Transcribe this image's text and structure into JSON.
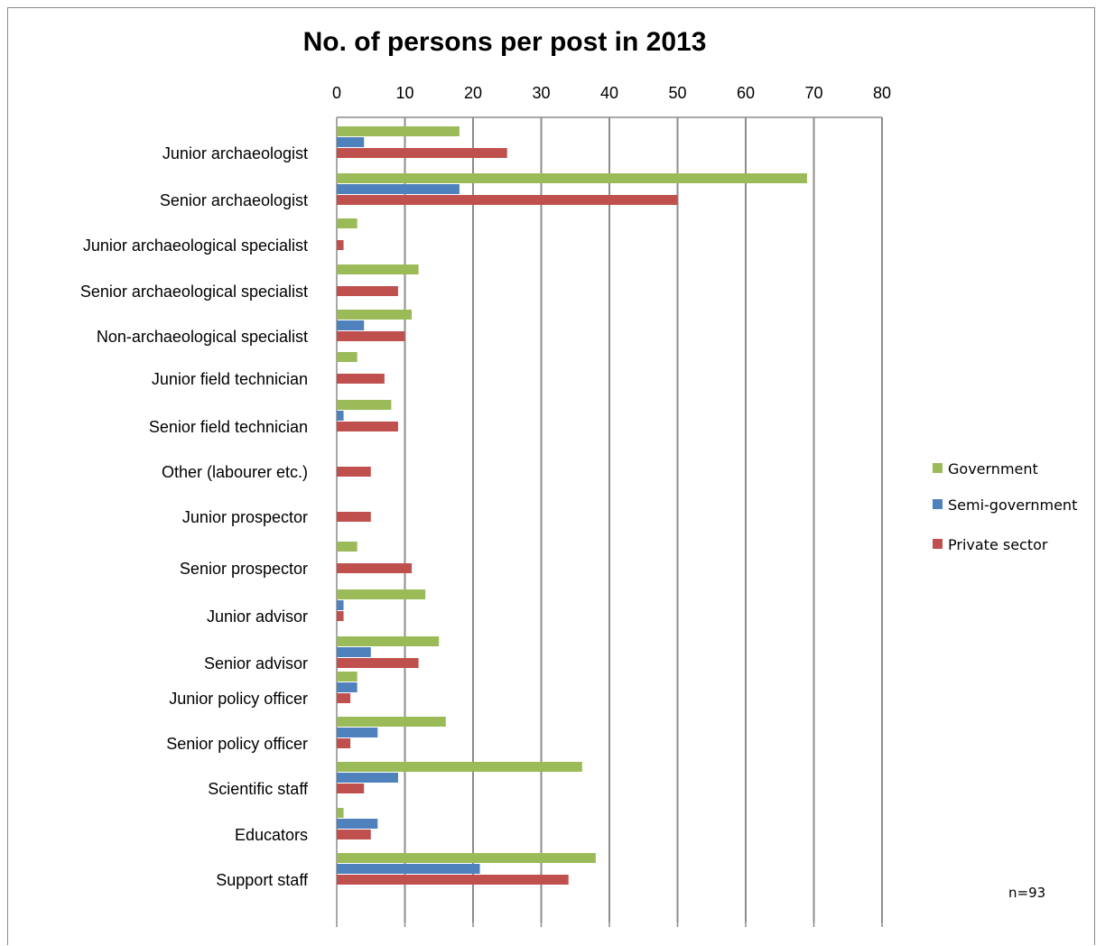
{
  "chart_data": {
    "type": "bar",
    "orientation": "horizontal",
    "title": "No. of persons per post in 2013",
    "xlabel": "",
    "ylabel": "",
    "xlim": [
      0,
      80
    ],
    "x_ticks": [
      "0",
      "10",
      "20",
      "30",
      "40",
      "50",
      "60",
      "70",
      "80"
    ],
    "x_axis_position": "top",
    "grid": "vertical",
    "legend_position": "right",
    "categories": [
      "Junior archaeologist",
      "Senior archaeologist",
      "Junior archaeological specialist",
      "Senior archaeological specialist",
      "Non-archaeological specialist",
      "Junior field technician",
      "Senior field technician",
      "Other (labourer etc.)",
      "Junior prospector",
      "Senior prospector",
      "Junior advisor",
      "Senior advisor",
      "Junior policy officer",
      "Senior policy officer",
      "Scientific staff",
      "Educators",
      "Support staff"
    ],
    "series": [
      {
        "name": "Government",
        "color": "#9bbb59",
        "values": [
          18,
          69,
          3,
          12,
          11,
          3,
          8,
          0,
          0,
          3,
          13,
          15,
          3,
          16,
          36,
          1,
          38
        ]
      },
      {
        "name": "Semi-government",
        "color": "#4f81bd",
        "values": [
          4,
          18,
          0,
          0,
          4,
          0,
          1,
          0,
          0,
          0,
          1,
          5,
          3,
          6,
          9,
          6,
          21
        ]
      },
      {
        "name": "Private sector",
        "color": "#c0504d",
        "values": [
          25,
          50,
          1,
          9,
          10,
          7,
          9,
          5,
          5,
          11,
          1,
          12,
          2,
          2,
          4,
          5,
          34
        ]
      }
    ],
    "annotation": "n=93"
  }
}
